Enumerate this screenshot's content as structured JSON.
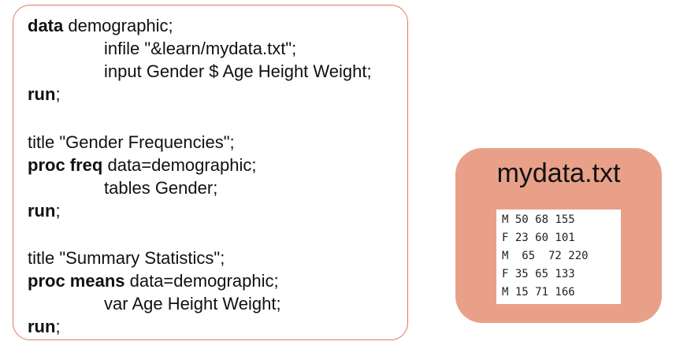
{
  "code": {
    "lines": [
      {
        "kw": "data",
        "rest": " demographic;"
      },
      {
        "kw": "",
        "rest": "infile \"&learn/mydata.txt\";"
      },
      {
        "kw": "",
        "rest": "input Gender $ Age Height Weight;"
      },
      {
        "kw": "run",
        "rest": ";"
      },
      {
        "kw": "",
        "rest": "title \"Gender Frequencies\";"
      },
      {
        "kw": "proc freq",
        "rest": " data=demographic;"
      },
      {
        "kw": "",
        "rest": "tables Gender;"
      },
      {
        "kw": "run",
        "rest": ";"
      },
      {
        "kw": "",
        "rest": "title \"Summary Statistics\";"
      },
      {
        "kw": "proc means",
        "rest": " data=demographic;"
      },
      {
        "kw": "",
        "rest": "var Age Height Weight;"
      },
      {
        "kw": "run",
        "rest": ";"
      }
    ]
  },
  "file": {
    "title": "mydata.txt",
    "rows": [
      "M 50 68 155",
      "F 23 60 101",
      "M  65  72 220",
      "F 35 65 133",
      "M 15 71 166"
    ]
  },
  "colors": {
    "panel_border": "#e07a5f",
    "file_background": "#e8a188"
  }
}
